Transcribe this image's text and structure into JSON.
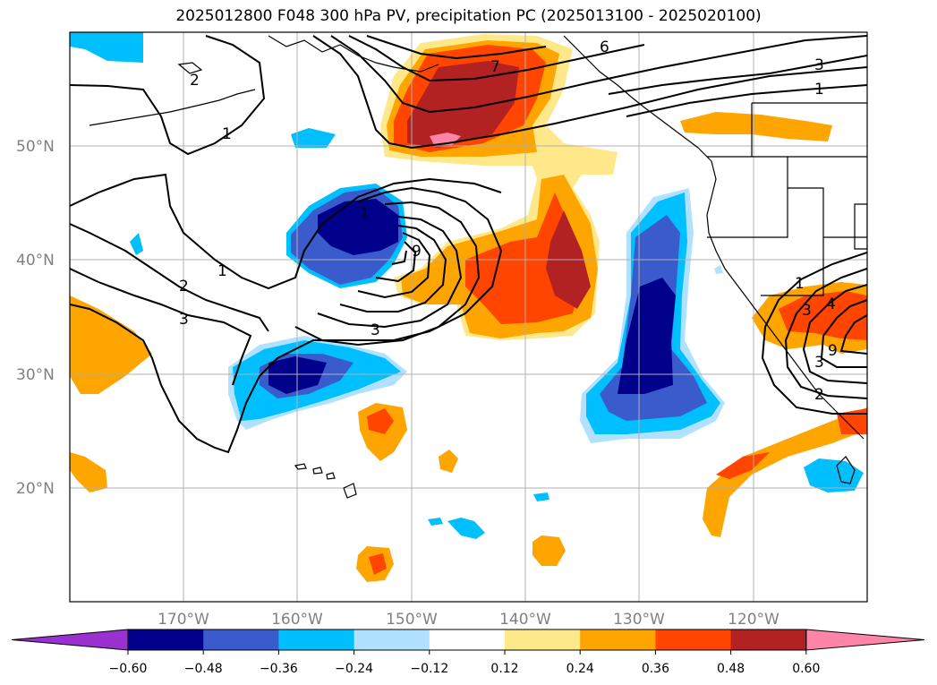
{
  "title": "2025012800 F048 300 hPa PV, precipitation PC (2025013100 - 2025020100)",
  "map": {
    "latitude_ticks": [
      "50°N",
      "40°N",
      "30°N",
      "20°N"
    ],
    "longitude_ticks": [
      "170°W",
      "160°W",
      "150°W",
      "140°W",
      "130°W",
      "120°W"
    ],
    "extent": {
      "lon_min": -180,
      "lon_max": -110,
      "lat_min": 10,
      "lat_max": 60
    },
    "gridlines": true,
    "contour_labels": [
      "2",
      "1",
      "1",
      "2",
      "3",
      "1",
      "9",
      "3",
      "7",
      "6",
      "3",
      "1",
      "1",
      "3",
      "4",
      "2",
      "9",
      "3"
    ]
  },
  "colorbar": {
    "ticks": [
      "−0.60",
      "−0.48",
      "−0.36",
      "−0.24",
      "−0.12",
      "0.12",
      "0.24",
      "0.36",
      "0.48",
      "0.60"
    ],
    "colors": [
      "#9b30d0",
      "#00008b",
      "#3a5bcc",
      "#00bfff",
      "#b0e2ff",
      "#ffffff",
      "#ffe88a",
      "#ffa500",
      "#ff4500",
      "#b22222",
      "#ff85a8"
    ]
  }
}
